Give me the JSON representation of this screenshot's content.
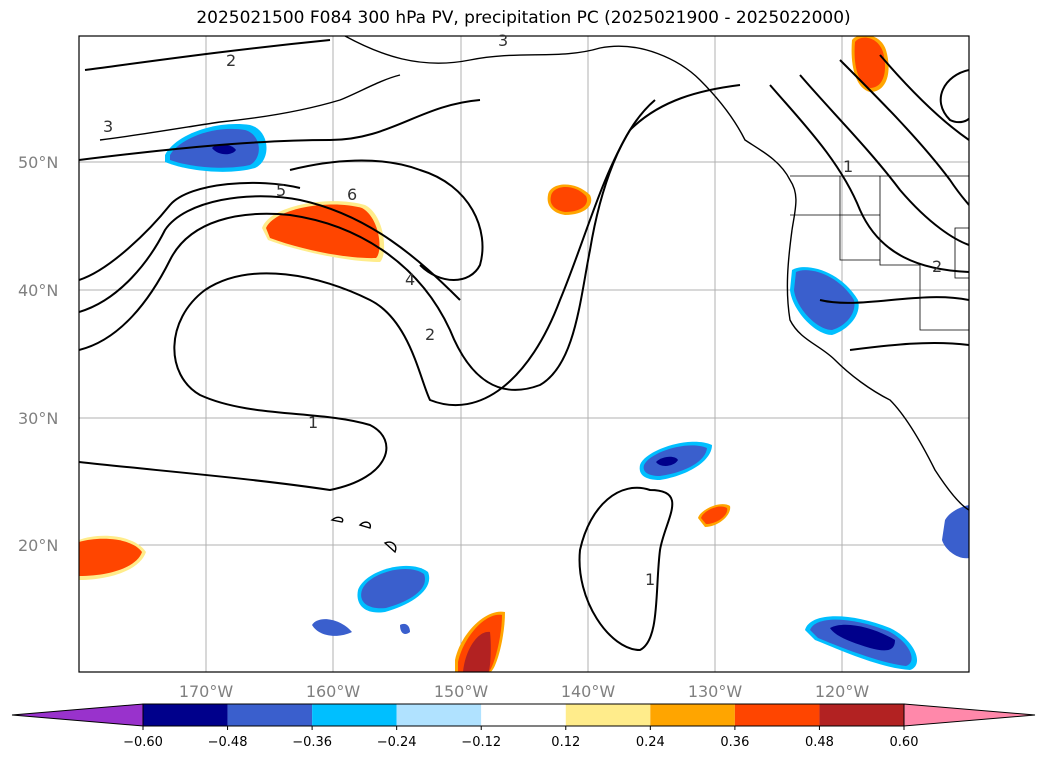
{
  "title": "2025021500 F084 300 hPa PV, precipitation PC (2025021900 - 2025022000)",
  "latitude_labels": [
    "50°N",
    "40°N",
    "30°N",
    "20°N"
  ],
  "longitude_labels": [
    "170°W",
    "160°W",
    "150°W",
    "140°W",
    "130°W",
    "120°W"
  ],
  "pv_contour_labels": [
    "1",
    "1",
    "1",
    "2",
    "2",
    "2",
    "3",
    "3",
    "4",
    "5",
    "6"
  ],
  "colorbar": {
    "ticks": [
      "−0.60",
      "−0.48",
      "−0.36",
      "−0.24",
      "−0.12",
      "0.12",
      "0.24",
      "0.36",
      "0.48",
      "0.60"
    ],
    "colors": [
      "#9932cc",
      "#00008b",
      "#3a5fcd",
      "#00bfff",
      "#b0e2ff",
      "#ffffff",
      "#ffec8b",
      "#ffa500",
      "#ff4500",
      "#b22222",
      "#ff88aa"
    ]
  },
  "colors": {
    "land_outline": "#000000",
    "gridline": "#b0b0b0",
    "contour": "#000000"
  }
}
